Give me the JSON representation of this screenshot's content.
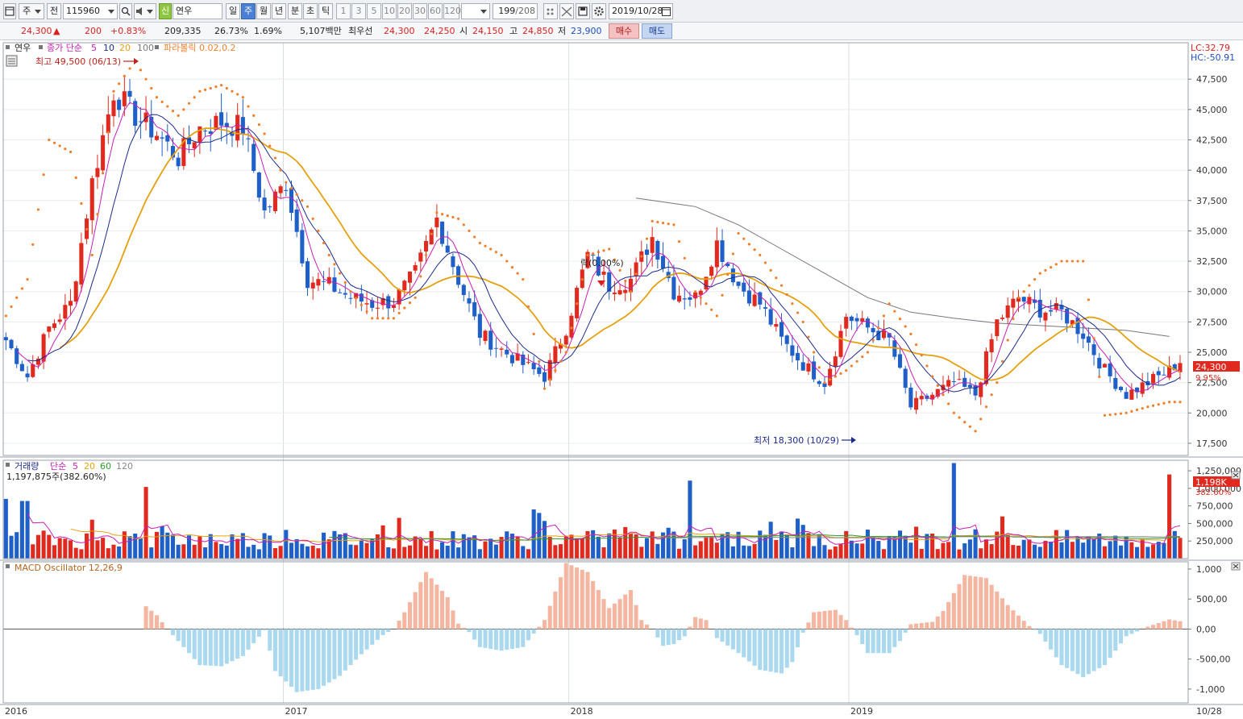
{
  "toolbar": {
    "period_label": "주",
    "prev_label": "전",
    "code_value": "115960",
    "tag_label": "신",
    "name_value": "연우",
    "periods": [
      "일",
      "주",
      "월",
      "년",
      "분",
      "초",
      "틱"
    ],
    "active_period": "주",
    "intervals": [
      "1",
      "3",
      "5",
      "10",
      "20",
      "30",
      "60",
      "120"
    ],
    "count_value": "199",
    "count_total": "/208",
    "date_value": "2019/10/28"
  },
  "quote": {
    "price": "24,300",
    "change_arrow": "▲",
    "change": "200",
    "change_pct": "+0.83%",
    "volume": "209,335",
    "turnover_pct": "26.73%",
    "ratio_pct": "1.69%",
    "amount": "5,107백만",
    "best_bid_label": "최우선",
    "best_ask": "24,300",
    "best_bid": "24,250",
    "open_label": "시",
    "open": "24,150",
    "high_label": "고",
    "high": "24,850",
    "low_label": "저",
    "low": "23,900",
    "buy_label": "매수",
    "sell_label": "매도"
  },
  "colors": {
    "up": "#e02a1f",
    "down": "#1f5fc8",
    "ma5": "#c81eb4",
    "ma10": "#1c2b8a",
    "ma20": "#e6a00f",
    "ma100": "#777777",
    "sar": "#ef7f2b",
    "macd_pos": "#f4b6a0",
    "macd_neg": "#a9d8ef",
    "vol_ma5": "#c81eb4",
    "vol_ma20": "#e6a00f",
    "vol_ma60": "#2e9a2e",
    "vol_ma120": "#888888"
  },
  "chart_data": [
    {
      "type": "candlestick",
      "title": "",
      "legend": {
        "name": "연우",
        "ma_label": "종가 단순",
        "ma_periods": [
          "5",
          "10",
          "20",
          "100"
        ],
        "sar_label": "파라볼릭 0.02,0.2"
      },
      "corner_labels": [
        "LC:32.79",
        "HC:-50.91"
      ],
      "y_ticks": [
        "47,500",
        "45,000",
        "42,500",
        "40,000",
        "37,500",
        "35,000",
        "32,500",
        "30,000",
        "27,500",
        "25,000",
        "22,500",
        "20,000",
        "17,500"
      ],
      "ylim": [
        16500,
        50500
      ],
      "x_labels": [
        "2016",
        "2017",
        "2018",
        "2019",
        "10/28"
      ],
      "last_price_label": "24,300",
      "last_pct_label": "9.95%",
      "annotations": {
        "high": "최고 49,500 (06/13)",
        "low": "최저 18,300 (10/29)",
        "lock": "락(0.00%)"
      },
      "weeks": 208,
      "visible": 199,
      "keypoints": [
        [
          0,
          26000
        ],
        [
          4,
          23000
        ],
        [
          8,
          27000
        ],
        [
          12,
          29000
        ],
        [
          16,
          39000
        ],
        [
          20,
          46500
        ],
        [
          24,
          44500
        ],
        [
          28,
          43000
        ],
        [
          32,
          41000
        ],
        [
          36,
          43500
        ],
        [
          40,
          44000
        ],
        [
          44,
          43500
        ],
        [
          48,
          36500
        ],
        [
          52,
          39000
        ],
        [
          56,
          31000
        ],
        [
          60,
          30500
        ],
        [
          64,
          29500
        ],
        [
          68,
          29000
        ],
        [
          72,
          29200
        ],
        [
          76,
          31500
        ],
        [
          80,
          36000
        ],
        [
          84,
          31000
        ],
        [
          88,
          26500
        ],
        [
          92,
          25200
        ],
        [
          96,
          24000
        ],
        [
          100,
          23000
        ],
        [
          104,
          27000
        ],
        [
          108,
          33000
        ],
        [
          112,
          30500
        ],
        [
          116,
          31000
        ],
        [
          120,
          34500
        ],
        [
          124,
          30000
        ],
        [
          128,
          29500
        ],
        [
          132,
          34000
        ],
        [
          136,
          30500
        ],
        [
          140,
          29000
        ],
        [
          144,
          26000
        ],
        [
          148,
          24000
        ],
        [
          152,
          22500
        ],
        [
          156,
          28000
        ],
        [
          160,
          27000
        ],
        [
          164,
          26000
        ],
        [
          168,
          20500
        ],
        [
          172,
          21500
        ],
        [
          176,
          22500
        ],
        [
          180,
          21500
        ],
        [
          184,
          27500
        ],
        [
          188,
          29500
        ],
        [
          192,
          28500
        ],
        [
          196,
          28300
        ],
        [
          200,
          26500
        ],
        [
          204,
          23500
        ],
        [
          208,
          21500
        ],
        [
          212,
          22500
        ],
        [
          216,
          23500
        ],
        [
          218,
          24300
        ]
      ],
      "ma100_points": [
        [
          117,
          37700
        ],
        [
          128,
          37000
        ],
        [
          136,
          35500
        ],
        [
          144,
          33500
        ],
        [
          152,
          31500
        ],
        [
          160,
          29500
        ],
        [
          168,
          28300
        ],
        [
          176,
          27800
        ],
        [
          184,
          27400
        ],
        [
          192,
          27200
        ],
        [
          200,
          27000
        ],
        [
          208,
          26800
        ],
        [
          216,
          26300
        ]
      ],
      "sar_points": [
        [
          0,
          28000
        ],
        [
          4,
          31000
        ],
        [
          8,
          42500
        ],
        [
          12,
          41500
        ],
        [
          16,
          33000
        ],
        [
          20,
          46500
        ],
        [
          24,
          49000
        ],
        [
          28,
          46000
        ],
        [
          32,
          44500
        ],
        [
          36,
          46500
        ],
        [
          40,
          47000
        ],
        [
          44,
          46000
        ],
        [
          48,
          43000
        ],
        [
          52,
          39000
        ],
        [
          56,
          37000
        ],
        [
          60,
          33000
        ],
        [
          64,
          30000
        ],
        [
          68,
          27800
        ],
        [
          72,
          27800
        ],
        [
          76,
          29500
        ],
        [
          80,
          36500
        ],
        [
          84,
          36000
        ],
        [
          88,
          34000
        ],
        [
          92,
          33000
        ],
        [
          96,
          31000
        ],
        [
          100,
          22000
        ],
        [
          104,
          25000
        ],
        [
          108,
          33000
        ],
        [
          112,
          33500
        ],
        [
          116,
          30000
        ],
        [
          120,
          35800
        ],
        [
          124,
          35500
        ],
        [
          128,
          30000
        ],
        [
          132,
          28000
        ],
        [
          136,
          34800
        ],
        [
          140,
          33000
        ],
        [
          144,
          30500
        ],
        [
          148,
          27500
        ],
        [
          152,
          22500
        ],
        [
          156,
          23500
        ],
        [
          160,
          25000
        ],
        [
          164,
          29000
        ],
        [
          168,
          26500
        ],
        [
          172,
          23000
        ],
        [
          176,
          20000
        ],
        [
          180,
          18500
        ],
        [
          184,
          22500
        ],
        [
          188,
          29500
        ],
        [
          192,
          31500
        ],
        [
          196,
          32500
        ],
        [
          200,
          32500
        ],
        [
          204,
          19800
        ],
        [
          208,
          20000
        ],
        [
          212,
          20500
        ],
        [
          216,
          20900
        ]
      ]
    },
    {
      "type": "bar",
      "title": "",
      "legend": {
        "name": "거래량",
        "ma_label": "단순",
        "ma_periods": [
          "5",
          "20",
          "60",
          "120"
        ],
        "value_label": "1,197,875주(382.60%)"
      },
      "y_ticks": [
        "1,250,000",
        "1,000,000",
        "750,000",
        "500,000",
        "250,000"
      ],
      "ylim": [
        0,
        1400000
      ],
      "last_value_label": "1,198K",
      "last_pct_label": "382.60%",
      "spikes": [
        [
          0,
          850000
        ],
        [
          3,
          820000
        ],
        [
          4,
          820000
        ],
        [
          26,
          1020000
        ],
        [
          73,
          580000
        ],
        [
          98,
          700000
        ],
        [
          99,
          650000
        ],
        [
          127,
          1110000
        ],
        [
          148,
          480000
        ],
        [
          176,
          1360000
        ],
        [
          185,
          600000
        ],
        [
          216,
          1197875
        ]
      ]
    },
    {
      "type": "bar",
      "title": "",
      "legend": {
        "name": "MACD Oscillator 12,26,9"
      },
      "y_ticks": [
        "1,000",
        "500,00",
        "0,00",
        "-500,00",
        "-1,000"
      ],
      "ylim": [
        -1230,
        1120
      ],
      "points": [
        [
          0,
          0
        ],
        [
          25,
          0
        ],
        [
          26,
          380
        ],
        [
          28,
          230
        ],
        [
          30,
          0
        ],
        [
          32,
          -200
        ],
        [
          36,
          -600
        ],
        [
          40,
          -620
        ],
        [
          44,
          -450
        ],
        [
          48,
          -20
        ],
        [
          50,
          -700
        ],
        [
          54,
          -1050
        ],
        [
          58,
          -1000
        ],
        [
          62,
          -780
        ],
        [
          66,
          -420
        ],
        [
          70,
          -100
        ],
        [
          72,
          0
        ],
        [
          74,
          280
        ],
        [
          78,
          950
        ],
        [
          82,
          530
        ],
        [
          84,
          90
        ],
        [
          86,
          -50
        ],
        [
          88,
          -300
        ],
        [
          92,
          -360
        ],
        [
          96,
          -300
        ],
        [
          100,
          150
        ],
        [
          104,
          1100
        ],
        [
          108,
          950
        ],
        [
          112,
          350
        ],
        [
          116,
          650
        ],
        [
          118,
          150
        ],
        [
          120,
          0
        ],
        [
          122,
          -280
        ],
        [
          124,
          -250
        ],
        [
          126,
          -120
        ],
        [
          128,
          200
        ],
        [
          130,
          150
        ],
        [
          132,
          -150
        ],
        [
          136,
          -400
        ],
        [
          140,
          -680
        ],
        [
          144,
          -740
        ],
        [
          146,
          -550
        ],
        [
          148,
          -60
        ],
        [
          150,
          280
        ],
        [
          154,
          320
        ],
        [
          156,
          150
        ],
        [
          158,
          -100
        ],
        [
          160,
          -400
        ],
        [
          164,
          -400
        ],
        [
          166,
          -200
        ],
        [
          168,
          80
        ],
        [
          172,
          120
        ],
        [
          174,
          300
        ],
        [
          178,
          900
        ],
        [
          182,
          850
        ],
        [
          186,
          400
        ],
        [
          190,
          50
        ],
        [
          192,
          -80
        ],
        [
          196,
          -600
        ],
        [
          200,
          -800
        ],
        [
          204,
          -600
        ],
        [
          208,
          -120
        ],
        [
          212,
          40
        ],
        [
          216,
          160
        ],
        [
          218,
          130
        ]
      ]
    }
  ]
}
